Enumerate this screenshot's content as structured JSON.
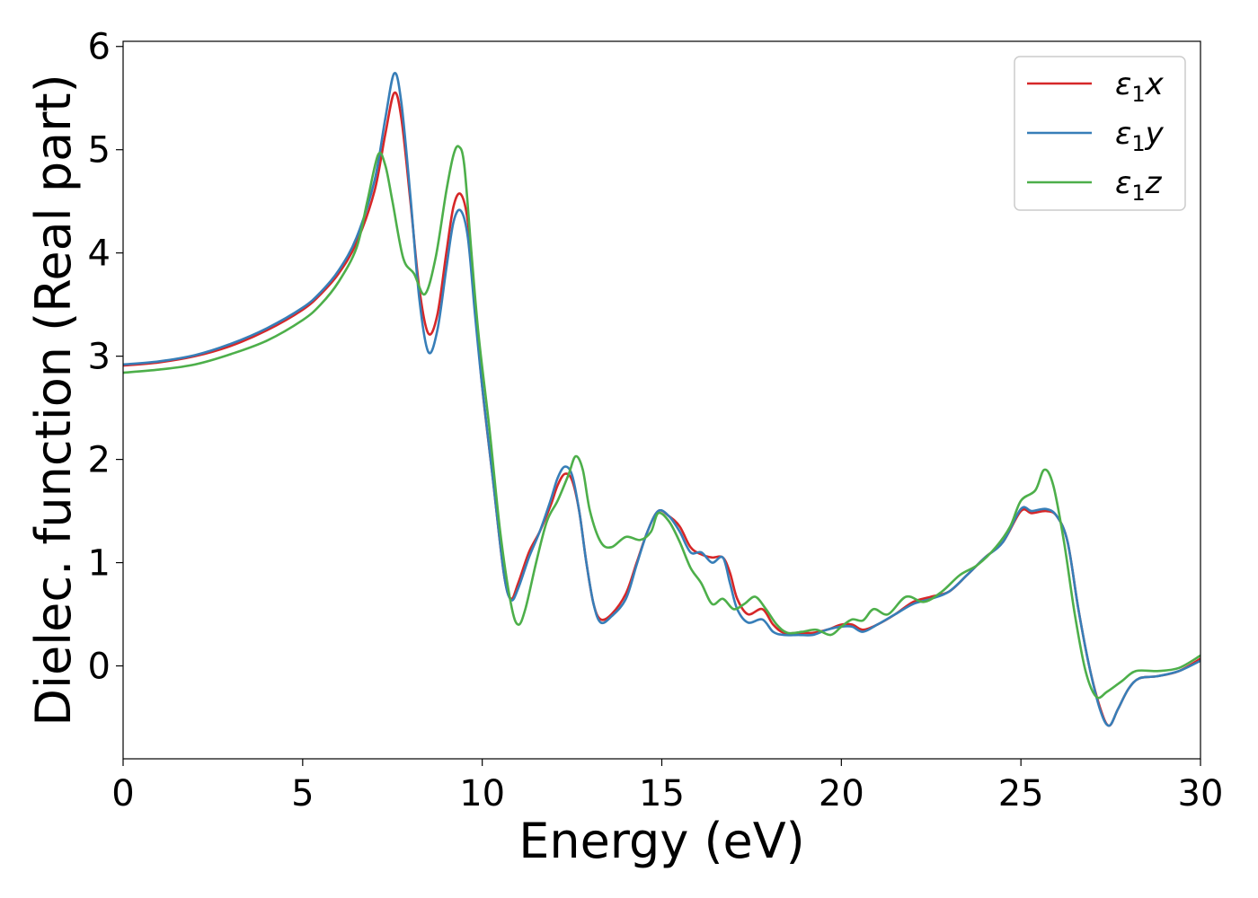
{
  "chart_data": {
    "type": "line",
    "xlabel": "Energy (eV)",
    "ylabel": "Dielec. function (Real part)",
    "xlim": [
      0,
      30
    ],
    "ylim": [
      -0.9,
      6.05
    ],
    "xticks": [
      0,
      5,
      10,
      15,
      20,
      25,
      30
    ],
    "yticks": [
      0,
      1,
      2,
      3,
      4,
      5,
      6
    ],
    "grid": false,
    "legend_position": "top-right",
    "series": [
      {
        "name": "ε₁x",
        "legend_base": "ε",
        "legend_sub": "1",
        "legend_suffix": "x",
        "color": "#d62728",
        "points": [
          [
            0,
            2.91
          ],
          [
            1,
            2.94
          ],
          [
            2,
            3.0
          ],
          [
            3,
            3.1
          ],
          [
            4,
            3.25
          ],
          [
            5,
            3.45
          ],
          [
            5.5,
            3.6
          ],
          [
            6,
            3.8
          ],
          [
            6.5,
            4.1
          ],
          [
            7,
            4.6
          ],
          [
            7.3,
            5.15
          ],
          [
            7.55,
            5.55
          ],
          [
            7.75,
            5.3
          ],
          [
            8.0,
            4.5
          ],
          [
            8.25,
            3.65
          ],
          [
            8.5,
            3.22
          ],
          [
            8.75,
            3.4
          ],
          [
            9.0,
            4.0
          ],
          [
            9.2,
            4.45
          ],
          [
            9.4,
            4.57
          ],
          [
            9.6,
            4.3
          ],
          [
            9.8,
            3.5
          ],
          [
            10.0,
            2.7
          ],
          [
            10.3,
            1.8
          ],
          [
            10.6,
            0.9
          ],
          [
            10.8,
            0.65
          ],
          [
            11.0,
            0.8
          ],
          [
            11.3,
            1.1
          ],
          [
            11.6,
            1.3
          ],
          [
            11.9,
            1.55
          ],
          [
            12.1,
            1.75
          ],
          [
            12.3,
            1.86
          ],
          [
            12.5,
            1.8
          ],
          [
            12.7,
            1.5
          ],
          [
            12.9,
            1.0
          ],
          [
            13.1,
            0.6
          ],
          [
            13.3,
            0.45
          ],
          [
            13.6,
            0.5
          ],
          [
            14.0,
            0.7
          ],
          [
            14.3,
            1.0
          ],
          [
            14.6,
            1.3
          ],
          [
            14.9,
            1.5
          ],
          [
            15.2,
            1.45
          ],
          [
            15.5,
            1.35
          ],
          [
            15.8,
            1.15
          ],
          [
            16.1,
            1.08
          ],
          [
            16.4,
            1.05
          ],
          [
            16.7,
            1.05
          ],
          [
            16.9,
            0.9
          ],
          [
            17.1,
            0.65
          ],
          [
            17.4,
            0.5
          ],
          [
            17.8,
            0.55
          ],
          [
            18.1,
            0.4
          ],
          [
            18.4,
            0.32
          ],
          [
            18.8,
            0.32
          ],
          [
            19.2,
            0.32
          ],
          [
            19.6,
            0.35
          ],
          [
            20.0,
            0.4
          ],
          [
            20.3,
            0.4
          ],
          [
            20.6,
            0.35
          ],
          [
            21.0,
            0.4
          ],
          [
            21.5,
            0.5
          ],
          [
            22.0,
            0.62
          ],
          [
            22.5,
            0.67
          ],
          [
            23.0,
            0.72
          ],
          [
            23.5,
            0.88
          ],
          [
            24.0,
            1.05
          ],
          [
            24.5,
            1.2
          ],
          [
            25.0,
            1.5
          ],
          [
            25.3,
            1.48
          ],
          [
            25.7,
            1.5
          ],
          [
            26.0,
            1.45
          ],
          [
            26.3,
            1.2
          ],
          [
            26.6,
            0.55
          ],
          [
            26.9,
            0.0
          ],
          [
            27.2,
            -0.4
          ],
          [
            27.45,
            -0.58
          ],
          [
            27.7,
            -0.42
          ],
          [
            28.0,
            -0.22
          ],
          [
            28.3,
            -0.12
          ],
          [
            28.8,
            -0.1
          ],
          [
            29.4,
            -0.05
          ],
          [
            30.0,
            0.07
          ]
        ]
      },
      {
        "name": "ε₁y",
        "legend_base": "ε",
        "legend_sub": "1",
        "legend_suffix": "y",
        "color": "#377eb8",
        "points": [
          [
            0,
            2.92
          ],
          [
            1,
            2.95
          ],
          [
            2,
            3.01
          ],
          [
            3,
            3.12
          ],
          [
            4,
            3.27
          ],
          [
            5,
            3.47
          ],
          [
            5.5,
            3.62
          ],
          [
            6,
            3.83
          ],
          [
            6.5,
            4.15
          ],
          [
            7,
            4.7
          ],
          [
            7.3,
            5.3
          ],
          [
            7.55,
            5.74
          ],
          [
            7.75,
            5.45
          ],
          [
            8.0,
            4.55
          ],
          [
            8.25,
            3.55
          ],
          [
            8.5,
            3.04
          ],
          [
            8.75,
            3.25
          ],
          [
            9.0,
            3.85
          ],
          [
            9.2,
            4.3
          ],
          [
            9.4,
            4.41
          ],
          [
            9.6,
            4.15
          ],
          [
            9.8,
            3.4
          ],
          [
            10.0,
            2.7
          ],
          [
            10.3,
            1.8
          ],
          [
            10.6,
            0.9
          ],
          [
            10.8,
            0.64
          ],
          [
            11.0,
            0.75
          ],
          [
            11.3,
            1.05
          ],
          [
            11.6,
            1.3
          ],
          [
            11.9,
            1.6
          ],
          [
            12.1,
            1.82
          ],
          [
            12.3,
            1.93
          ],
          [
            12.5,
            1.85
          ],
          [
            12.7,
            1.5
          ],
          [
            12.9,
            1.0
          ],
          [
            13.1,
            0.6
          ],
          [
            13.3,
            0.42
          ],
          [
            13.6,
            0.48
          ],
          [
            14.0,
            0.65
          ],
          [
            14.3,
            0.98
          ],
          [
            14.6,
            1.3
          ],
          [
            14.9,
            1.5
          ],
          [
            15.2,
            1.45
          ],
          [
            15.5,
            1.3
          ],
          [
            15.8,
            1.1
          ],
          [
            16.1,
            1.1
          ],
          [
            16.4,
            1.0
          ],
          [
            16.7,
            1.05
          ],
          [
            16.9,
            0.8
          ],
          [
            17.1,
            0.55
          ],
          [
            17.4,
            0.42
          ],
          [
            17.8,
            0.45
          ],
          [
            18.1,
            0.33
          ],
          [
            18.4,
            0.3
          ],
          [
            18.8,
            0.3
          ],
          [
            19.2,
            0.3
          ],
          [
            19.6,
            0.35
          ],
          [
            20.0,
            0.38
          ],
          [
            20.3,
            0.38
          ],
          [
            20.6,
            0.33
          ],
          [
            21.0,
            0.4
          ],
          [
            21.5,
            0.5
          ],
          [
            22.0,
            0.6
          ],
          [
            22.5,
            0.65
          ],
          [
            23.0,
            0.72
          ],
          [
            23.5,
            0.88
          ],
          [
            24.0,
            1.05
          ],
          [
            24.5,
            1.2
          ],
          [
            25.0,
            1.52
          ],
          [
            25.3,
            1.5
          ],
          [
            25.7,
            1.52
          ],
          [
            26.0,
            1.45
          ],
          [
            26.3,
            1.2
          ],
          [
            26.6,
            0.55
          ],
          [
            26.9,
            0.0
          ],
          [
            27.2,
            -0.42
          ],
          [
            27.45,
            -0.58
          ],
          [
            27.7,
            -0.42
          ],
          [
            28.0,
            -0.22
          ],
          [
            28.3,
            -0.12
          ],
          [
            28.8,
            -0.1
          ],
          [
            29.4,
            -0.05
          ],
          [
            30.0,
            0.05
          ]
        ]
      },
      {
        "name": "ε₁z",
        "legend_base": "ε",
        "legend_sub": "1",
        "legend_suffix": "z",
        "color": "#4daf4a",
        "points": [
          [
            0,
            2.84
          ],
          [
            1,
            2.87
          ],
          [
            2,
            2.92
          ],
          [
            3,
            3.02
          ],
          [
            4,
            3.15
          ],
          [
            5,
            3.35
          ],
          [
            5.5,
            3.5
          ],
          [
            6,
            3.72
          ],
          [
            6.5,
            4.05
          ],
          [
            6.8,
            4.5
          ],
          [
            7.1,
            4.95
          ],
          [
            7.3,
            4.85
          ],
          [
            7.5,
            4.5
          ],
          [
            7.8,
            3.95
          ],
          [
            8.1,
            3.8
          ],
          [
            8.4,
            3.6
          ],
          [
            8.7,
            3.95
          ],
          [
            9.0,
            4.6
          ],
          [
            9.2,
            4.95
          ],
          [
            9.35,
            5.03
          ],
          [
            9.5,
            4.85
          ],
          [
            9.7,
            4.0
          ],
          [
            9.9,
            3.2
          ],
          [
            10.2,
            2.3
          ],
          [
            10.5,
            1.3
          ],
          [
            10.8,
            0.6
          ],
          [
            11.0,
            0.4
          ],
          [
            11.2,
            0.55
          ],
          [
            11.5,
            1.0
          ],
          [
            11.8,
            1.4
          ],
          [
            12.1,
            1.6
          ],
          [
            12.4,
            1.85
          ],
          [
            12.6,
            2.03
          ],
          [
            12.8,
            1.9
          ],
          [
            13.0,
            1.5
          ],
          [
            13.3,
            1.2
          ],
          [
            13.6,
            1.15
          ],
          [
            14.0,
            1.25
          ],
          [
            14.4,
            1.22
          ],
          [
            14.7,
            1.3
          ],
          [
            14.9,
            1.48
          ],
          [
            15.2,
            1.4
          ],
          [
            15.5,
            1.2
          ],
          [
            15.8,
            0.95
          ],
          [
            16.1,
            0.8
          ],
          [
            16.4,
            0.6
          ],
          [
            16.7,
            0.65
          ],
          [
            17.0,
            0.55
          ],
          [
            17.3,
            0.6
          ],
          [
            17.6,
            0.67
          ],
          [
            17.9,
            0.55
          ],
          [
            18.2,
            0.4
          ],
          [
            18.5,
            0.32
          ],
          [
            18.9,
            0.33
          ],
          [
            19.3,
            0.35
          ],
          [
            19.7,
            0.3
          ],
          [
            20.0,
            0.38
          ],
          [
            20.3,
            0.45
          ],
          [
            20.6,
            0.44
          ],
          [
            20.9,
            0.55
          ],
          [
            21.3,
            0.5
          ],
          [
            21.8,
            0.67
          ],
          [
            22.3,
            0.62
          ],
          [
            22.8,
            0.72
          ],
          [
            23.3,
            0.88
          ],
          [
            23.8,
            0.98
          ],
          [
            24.3,
            1.15
          ],
          [
            24.7,
            1.35
          ],
          [
            25.0,
            1.6
          ],
          [
            25.4,
            1.7
          ],
          [
            25.65,
            1.9
          ],
          [
            25.9,
            1.75
          ],
          [
            26.2,
            1.2
          ],
          [
            26.5,
            0.5
          ],
          [
            26.8,
            -0.05
          ],
          [
            27.1,
            -0.3
          ],
          [
            27.4,
            -0.25
          ],
          [
            27.8,
            -0.15
          ],
          [
            28.2,
            -0.05
          ],
          [
            28.8,
            -0.05
          ],
          [
            29.4,
            -0.02
          ],
          [
            30.0,
            0.1
          ]
        ]
      }
    ]
  }
}
